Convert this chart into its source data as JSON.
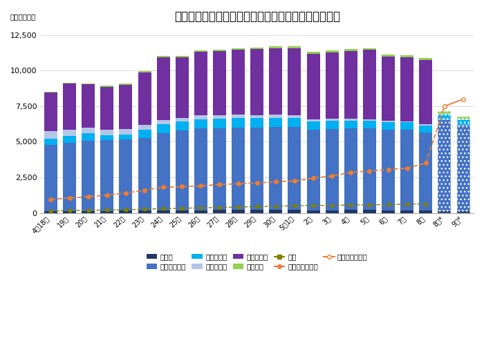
{
  "title": "《日本国内における新型コロナウイルスの感染者数》",
  "title_display": "【日本国内における新型コロナウイルスの感染者数】",
  "unit_label": "（単位：人）",
  "labels": [
    "4月18日",
    "19日",
    "20日",
    "21日",
    "22日",
    "23日",
    "24日",
    "25日",
    "26日",
    "27日",
    "28日",
    "29日",
    "30日",
    "5月1日",
    "2日",
    "3日",
    "4日",
    "5日",
    "6日",
    "7日",
    "8日",
    "8日*",
    "9日*"
  ],
  "重症者": [
    110,
    125,
    140,
    150,
    155,
    160,
    175,
    185,
    195,
    200,
    205,
    210,
    210,
    215,
    195,
    195,
    200,
    205,
    195,
    190,
    185,
    170,
    155
  ],
  "軽症中等症": [
    4650,
    4800,
    4950,
    4950,
    5000,
    5100,
    5450,
    5600,
    5750,
    5750,
    5800,
    5800,
    5820,
    5820,
    5650,
    5700,
    5720,
    5720,
    5650,
    5650,
    5450,
    6400,
    6050
  ],
  "入院待機中": [
    480,
    490,
    500,
    380,
    360,
    590,
    590,
    620,
    640,
    650,
    650,
    650,
    650,
    640,
    580,
    560,
    545,
    530,
    530,
    520,
    520,
    370,
    350
  ],
  "状態確認中": [
    490,
    440,
    410,
    390,
    360,
    330,
    310,
    280,
    260,
    245,
    235,
    225,
    215,
    185,
    170,
    150,
    140,
    120,
    100,
    90,
    75,
    45,
    25
  ],
  "症状確認中": [
    2750,
    3250,
    3050,
    3000,
    3130,
    3710,
    4400,
    4250,
    4500,
    4530,
    4580,
    4630,
    4680,
    4720,
    4590,
    4680,
    4780,
    4870,
    4490,
    4490,
    4490,
    0,
    0
  ],
  "空港検疫": [
    55,
    60,
    65,
    70,
    75,
    80,
    85,
    90,
    95,
    100,
    105,
    110,
    115,
    120,
    125,
    130,
    135,
    140,
    145,
    150,
    155,
    160,
    165
  ],
  "死者": [
    130,
    165,
    190,
    205,
    225,
    265,
    305,
    330,
    360,
    390,
    420,
    445,
    480,
    500,
    520,
    535,
    560,
    575,
    590,
    610,
    630,
    155,
    155
  ],
  "退院暫定値": [
    950,
    1050,
    1150,
    1250,
    1400,
    1600,
    1800,
    1850,
    1900,
    2000,
    2050,
    2100,
    2200,
    2250,
    2450,
    2600,
    2850,
    2950,
    3050,
    3150,
    3500,
    7500,
    null
  ],
  "退院確認値": [
    null,
    null,
    null,
    null,
    null,
    null,
    null,
    null,
    null,
    null,
    null,
    null,
    null,
    null,
    null,
    null,
    null,
    null,
    null,
    null,
    null,
    7500,
    8000
  ],
  "colors": {
    "重症者": "#1f3864",
    "軽症中等症": "#4472c4",
    "入院待機中": "#00b0f0",
    "状態確認中": "#b4c6e7",
    "症状確認中": "#7030a0",
    "空港検疫": "#92d050",
    "死者": "#808000"
  },
  "line_colors": {
    "退院暫定値": "#ed7d31",
    "退院確認値": "#ed7d31"
  },
  "ylim": [
    0,
    13000
  ],
  "yticks": [
    0,
    2500,
    5000,
    7500,
    10000,
    12500
  ],
  "bg_color": "#ffffff",
  "grid_color": "#d9d9d9"
}
